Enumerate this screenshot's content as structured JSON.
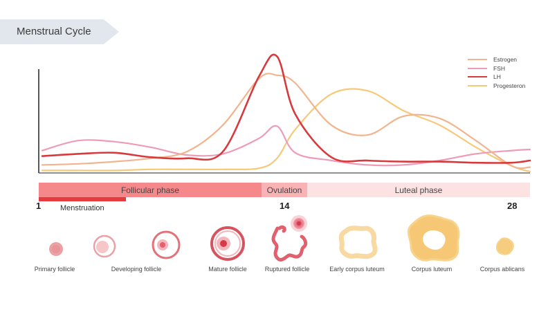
{
  "title": "Menstrual Cycle",
  "legend": [
    {
      "name": "Estrogen",
      "color": "#f2b48e"
    },
    {
      "name": "FSH",
      "color": "#ee9bb8"
    },
    {
      "name": "LH",
      "color": "#d63a3d"
    },
    {
      "name": "Progesteron",
      "color": "#f7c878"
    }
  ],
  "phases": {
    "follicular": "Follicular phase",
    "ovulation": "Ovulation",
    "luteal": "Luteal phase"
  },
  "day_start": "1",
  "day_ovulation": "14",
  "day_end": "28",
  "menstruation": "Menstruation",
  "follicles": [
    "Primary follicle",
    "Developing follicle",
    "Mature follicle",
    "Ruptured follicle",
    "Early corpus luteum",
    "Corpus luteum",
    "Corpus ablicans"
  ],
  "chart_data": {
    "type": "line",
    "x": [
      1,
      3,
      5,
      7,
      9,
      11,
      13,
      14,
      15,
      17,
      19,
      21,
      23,
      25,
      27,
      28
    ],
    "xlim": [
      1,
      28
    ],
    "ylim": [
      0,
      100
    ],
    "series": [
      {
        "name": "Estrogen",
        "values": [
          6,
          7,
          9,
          12,
          18,
          42,
          84,
          87,
          80,
          42,
          33,
          50,
          48,
          28,
          5,
          4
        ]
      },
      {
        "name": "FSH",
        "values": [
          19,
          28,
          27,
          22,
          15,
          16,
          30,
          41,
          17,
          10,
          6,
          6,
          10,
          16,
          19,
          20
        ]
      },
      {
        "name": "LH",
        "values": [
          14,
          16,
          17,
          13,
          12,
          18,
          86,
          104,
          52,
          13,
          10,
          9,
          9,
          8,
          8,
          10
        ]
      },
      {
        "name": "Progesteron",
        "values": [
          1,
          1,
          1,
          2,
          2,
          2,
          3,
          12,
          38,
          70,
          73,
          55,
          42,
          22,
          5,
          0
        ]
      }
    ]
  }
}
